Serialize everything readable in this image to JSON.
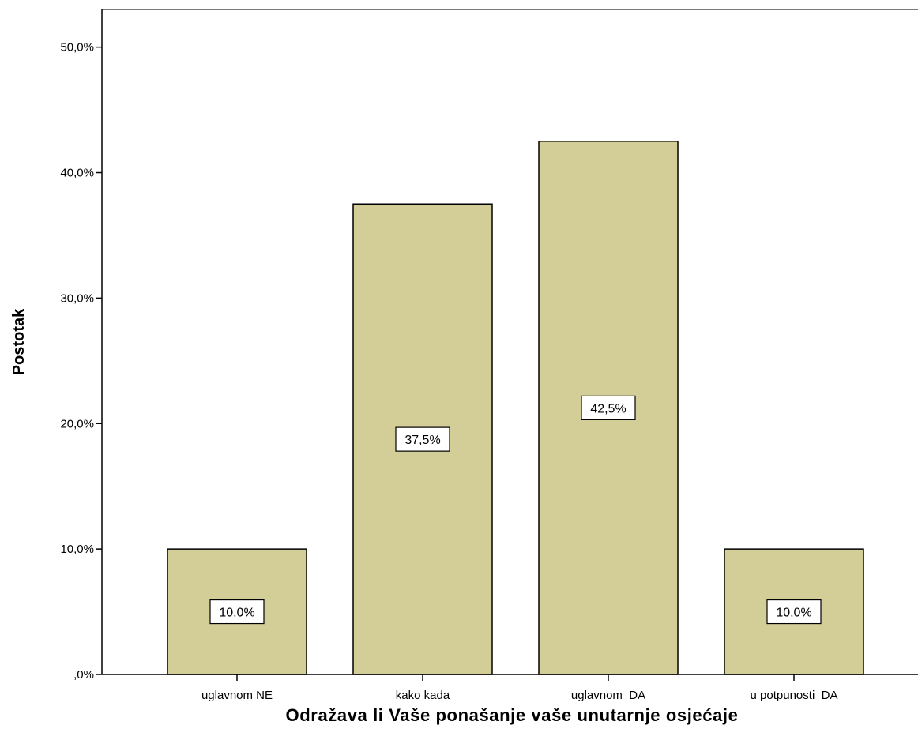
{
  "chart_data": {
    "type": "bar",
    "categories": [
      "uglavnom NE",
      "kako kada",
      "uglavnom  DA",
      "u potpunosti  DA"
    ],
    "values": [
      10.0,
      37.5,
      42.5,
      10.0
    ],
    "data_labels": [
      "10,0%",
      "37,5%",
      "42,5%",
      "10,0%"
    ],
    "ylabel": "Postotak",
    "xlabel": "Odražava li Vaše ponašanje vaše unutarnje osjećaje",
    "ylim": [
      0,
      53
    ],
    "yticks": [
      0,
      10,
      20,
      30,
      40,
      50
    ],
    "ytick_labels": [
      ",0%",
      "10,0%",
      "20,0%",
      "30,0%",
      "40,0%",
      "50,0%"
    ],
    "grid": false,
    "bar_color": "#d3cd98",
    "bar_edge_color": "#000000"
  }
}
